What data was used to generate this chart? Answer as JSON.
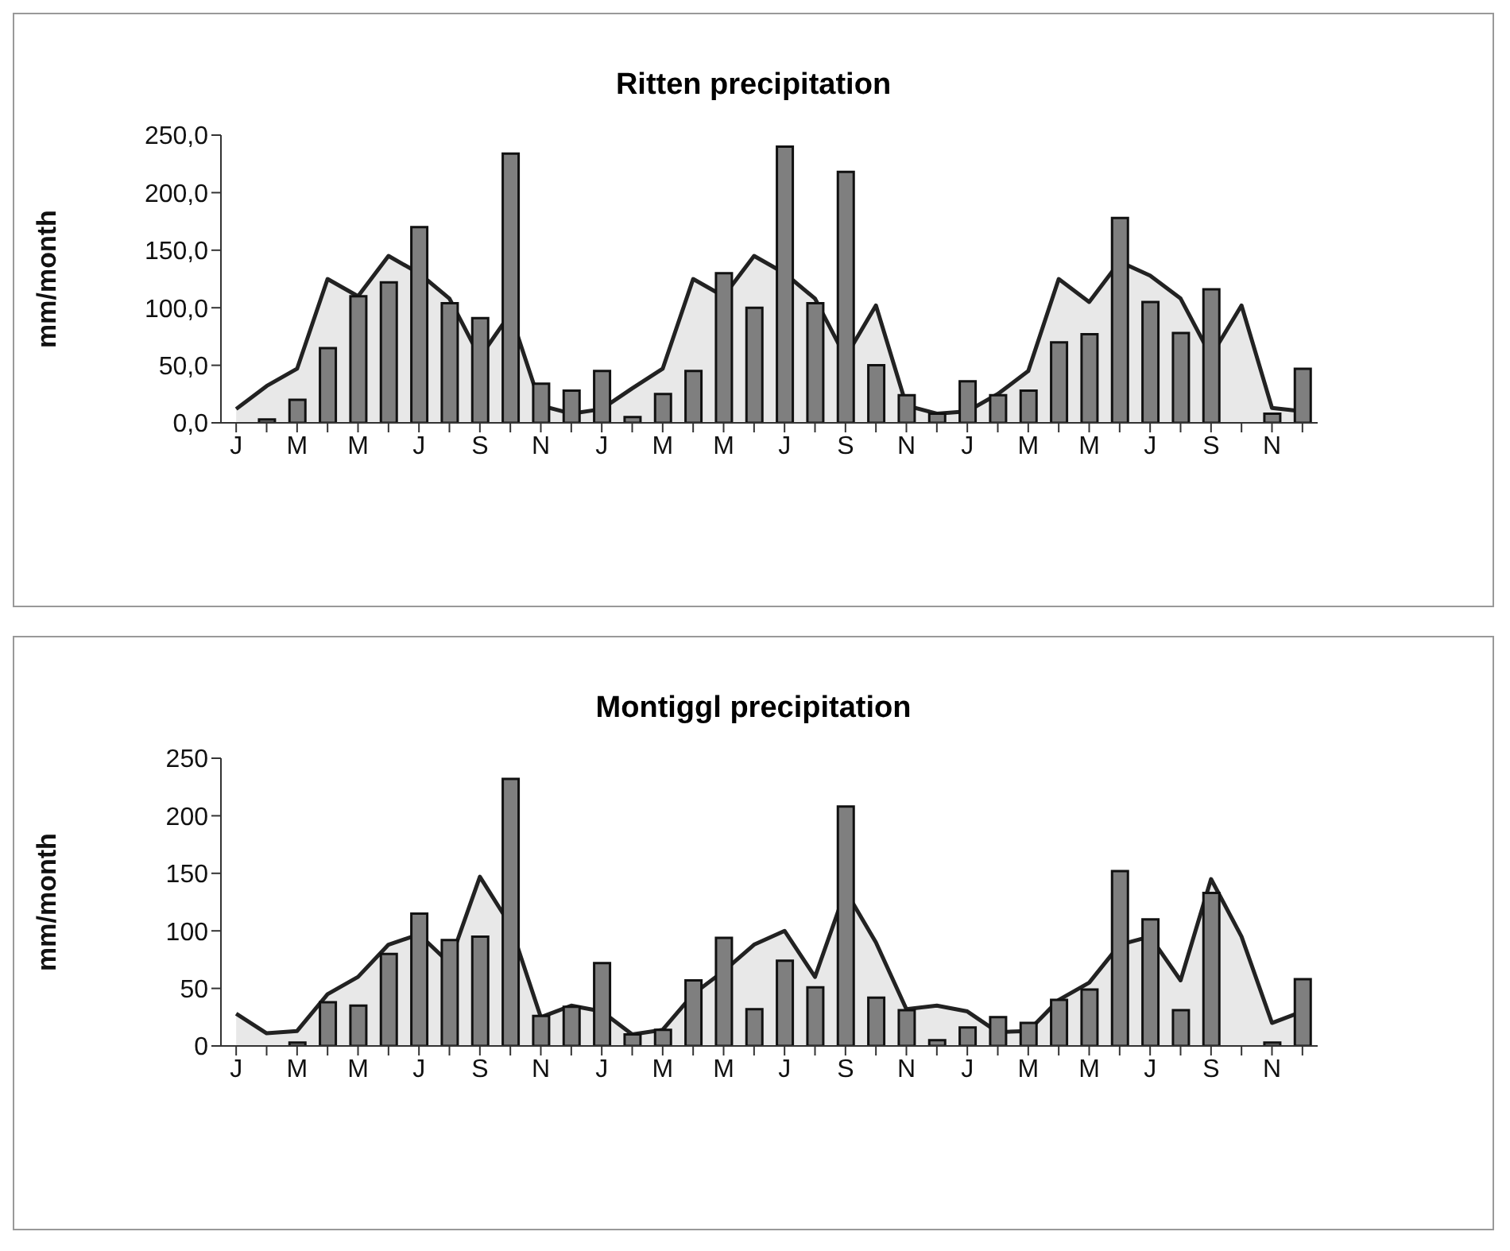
{
  "chart_data": [
    {
      "type": "bar",
      "title": "Ritten precipitation",
      "ylabel": "mm/month",
      "categories": [
        "J",
        null,
        "M",
        null,
        "M",
        null,
        "J",
        null,
        "S",
        null,
        "N",
        null,
        "J",
        null,
        "M",
        null,
        "M",
        null,
        "J",
        null,
        "S",
        null,
        "N",
        null,
        "J",
        null,
        "M",
        null,
        "M",
        null,
        "J",
        null,
        "S",
        null,
        "N",
        null
      ],
      "series": [
        {
          "type": "area",
          "color": "#222222",
          "values": [
            12,
            32,
            47,
            125,
            110,
            145,
            130,
            108,
            57,
            95,
            15,
            8,
            12,
            30,
            47,
            125,
            110,
            145,
            130,
            108,
            57,
            102,
            15,
            8,
            10,
            25,
            45,
            125,
            105,
            140,
            128,
            108,
            58,
            102,
            13,
            10
          ]
        },
        {
          "color": "#7f7f7f",
          "values": [
            0,
            3,
            20,
            65,
            110,
            122,
            170,
            104,
            91,
            234,
            34,
            28,
            45,
            5,
            25,
            45,
            130,
            100,
            240,
            104,
            218,
            50,
            24,
            8,
            36,
            24,
            28,
            70,
            77,
            178,
            105,
            78,
            116,
            0,
            8,
            47
          ]
        }
      ],
      "ylim": [
        0,
        250
      ],
      "yticks": [
        {
          "value": 0,
          "label": "0,0"
        },
        {
          "value": 50,
          "label": "50,0"
        },
        {
          "value": 100,
          "label": "100,0"
        },
        {
          "value": 150,
          "label": "150,0"
        },
        {
          "value": 200,
          "label": "200,0"
        },
        {
          "value": 250,
          "label": "250,0"
        }
      ],
      "grid": false,
      "legend": false
    },
    {
      "type": "bar",
      "title": "Montiggl precipitation",
      "ylabel": "mm/month",
      "categories": [
        "J",
        null,
        "M",
        null,
        "M",
        null,
        "J",
        null,
        "S",
        null,
        "N",
        null,
        "J",
        null,
        "M",
        null,
        "M",
        null,
        "J",
        null,
        "S",
        null,
        "N",
        null,
        "J",
        null,
        "M",
        null,
        "M",
        null,
        "J",
        null,
        "S",
        null,
        "N",
        null
      ],
      "series": [
        {
          "type": "area",
          "color": "#222222",
          "values": [
            28,
            11,
            13,
            45,
            60,
            88,
            97,
            72,
            147,
            105,
            25,
            35,
            30,
            10,
            14,
            45,
            65,
            88,
            100,
            60,
            135,
            90,
            32,
            35,
            30,
            12,
            13,
            40,
            55,
            88,
            95,
            57,
            145,
            95,
            20,
            30
          ]
        },
        {
          "color": "#7f7f7f",
          "values": [
            0,
            0,
            3,
            38,
            35,
            80,
            115,
            92,
            95,
            232,
            26,
            34,
            72,
            10,
            14,
            57,
            94,
            32,
            74,
            51,
            208,
            42,
            31,
            5,
            16,
            25,
            20,
            40,
            49,
            152,
            110,
            31,
            133,
            0,
            3,
            58
          ]
        }
      ],
      "ylim": [
        0,
        250
      ],
      "yticks": [
        0,
        50,
        100,
        150,
        200,
        250
      ],
      "grid": false,
      "legend": false
    }
  ]
}
